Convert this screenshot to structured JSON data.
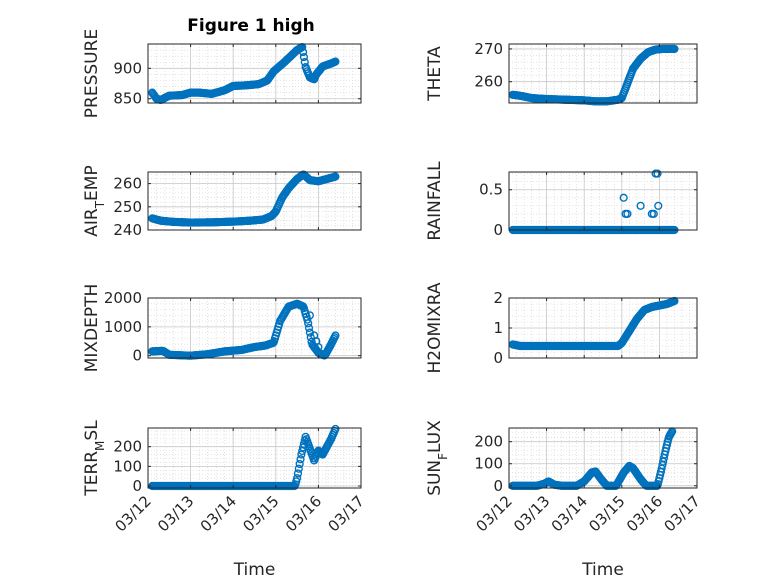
{
  "figure": {
    "title": "Figure 1 high"
  },
  "colors": {
    "marker": "#0072BD",
    "axes": "#262626",
    "grid": "#d0d0d0"
  },
  "chart_data": [
    {
      "id": "pressure",
      "type": "scatter",
      "title": "Figure 1 high",
      "ylabel": "PRESSURE",
      "ylabel_parts": [
        {
          "t": "PRESSURE",
          "sub": false
        }
      ],
      "xlim": [
        0,
        5
      ],
      "ylim": [
        843,
        940
      ],
      "yticks": [
        850,
        900
      ],
      "ytick_labels": [
        "850",
        "900"
      ],
      "xticks": [
        0,
        1,
        2,
        3,
        4,
        5
      ],
      "xtick_labels": [
        "03/12",
        "03/13",
        "03/14",
        "03/15",
        "03/16",
        "03/17"
      ],
      "show_xtick_labels": false,
      "grid": true,
      "minor_grid": true,
      "keypoints": [
        [
          0.1,
          860
        ],
        [
          0.2,
          850
        ],
        [
          0.3,
          848
        ],
        [
          0.5,
          855
        ],
        [
          0.8,
          856
        ],
        [
          1.0,
          860
        ],
        [
          1.2,
          860
        ],
        [
          1.5,
          858
        ],
        [
          1.8,
          864
        ],
        [
          2.0,
          871
        ],
        [
          2.3,
          872
        ],
        [
          2.6,
          874
        ],
        [
          2.8,
          880
        ],
        [
          2.95,
          895
        ],
        [
          3.2,
          910
        ],
        [
          3.5,
          930
        ],
        [
          3.62,
          935
        ],
        [
          3.7,
          902
        ],
        [
          3.8,
          885
        ],
        [
          3.9,
          882
        ],
        [
          3.95,
          890
        ],
        [
          4.1,
          903
        ],
        [
          4.3,
          908
        ],
        [
          4.4,
          911
        ]
      ]
    },
    {
      "id": "theta",
      "type": "scatter",
      "ylabel": "THETA",
      "ylabel_parts": [
        {
          "t": "THETA",
          "sub": false
        }
      ],
      "xlim": [
        0,
        5
      ],
      "ylim": [
        253.5,
        271.5
      ],
      "yticks": [
        260,
        270
      ],
      "ytick_labels": [
        "260",
        "270"
      ],
      "xticks": [
        0,
        1,
        2,
        3,
        4,
        5
      ],
      "xtick_labels": [
        "03/12",
        "03/13",
        "03/14",
        "03/15",
        "03/16",
        "03/17"
      ],
      "show_xtick_labels": false,
      "grid": true,
      "minor_grid": true,
      "keypoints": [
        [
          0.1,
          256
        ],
        [
          0.3,
          255.7
        ],
        [
          0.6,
          255
        ],
        [
          1.0,
          254.7
        ],
        [
          1.5,
          254.5
        ],
        [
          2.0,
          254.3
        ],
        [
          2.3,
          254.0
        ],
        [
          2.6,
          254.0
        ],
        [
          2.9,
          254.5
        ],
        [
          3.0,
          255
        ],
        [
          3.1,
          258
        ],
        [
          3.3,
          264
        ],
        [
          3.5,
          267
        ],
        [
          3.7,
          269
        ],
        [
          3.9,
          269.8
        ],
        [
          4.1,
          270
        ],
        [
          4.4,
          270
        ]
      ]
    },
    {
      "id": "air_temp",
      "type": "scatter",
      "ylabel": "AIR_TEMP",
      "ylabel_parts": [
        {
          "t": "AIR",
          "sub": false
        },
        {
          "t": "T",
          "sub": true
        },
        {
          "t": "EMP",
          "sub": false
        }
      ],
      "xlim": [
        0,
        5
      ],
      "ylim": [
        240,
        265
      ],
      "yticks": [
        240,
        250,
        260
      ],
      "ytick_labels": [
        "240",
        "250",
        "260"
      ],
      "xticks": [
        0,
        1,
        2,
        3,
        4,
        5
      ],
      "xtick_labels": [
        "03/12",
        "03/13",
        "03/14",
        "03/15",
        "03/16",
        "03/17"
      ],
      "show_xtick_labels": false,
      "grid": true,
      "minor_grid": true,
      "keypoints": [
        [
          0.1,
          245
        ],
        [
          0.3,
          244
        ],
        [
          0.6,
          243.5
        ],
        [
          1.0,
          243.2
        ],
        [
          1.5,
          243.3
        ],
        [
          2.0,
          243.6
        ],
        [
          2.4,
          244
        ],
        [
          2.7,
          244.5
        ],
        [
          2.9,
          246
        ],
        [
          3.0,
          248
        ],
        [
          3.15,
          254
        ],
        [
          3.3,
          258
        ],
        [
          3.5,
          262
        ],
        [
          3.65,
          264
        ],
        [
          3.8,
          261.5
        ],
        [
          4.0,
          261
        ],
        [
          4.2,
          262
        ],
        [
          4.4,
          263
        ]
      ]
    },
    {
      "id": "rainfall",
      "type": "scatter",
      "ylabel": "RAINFALL",
      "ylabel_parts": [
        {
          "t": "RAINFALL",
          "sub": false
        }
      ],
      "xlim": [
        0,
        5
      ],
      "ylim": [
        0,
        0.72
      ],
      "yticks": [
        0,
        0.5
      ],
      "ytick_labels": [
        "0",
        "0.5"
      ],
      "xticks": [
        0,
        1,
        2,
        3,
        4,
        5
      ],
      "xtick_labels": [
        "03/12",
        "03/13",
        "03/14",
        "03/15",
        "03/16",
        "03/17"
      ],
      "show_xtick_labels": false,
      "grid": true,
      "minor_grid": true,
      "keypoints": [
        [
          0.1,
          0
        ],
        [
          4.4,
          0
        ]
      ],
      "extra_points": [
        [
          3.05,
          0.4
        ],
        [
          3.1,
          0.2
        ],
        [
          3.15,
          0.2
        ],
        [
          3.5,
          0.3
        ],
        [
          3.8,
          0.2
        ],
        [
          3.85,
          0.2
        ],
        [
          3.9,
          0.7
        ],
        [
          3.95,
          0.7
        ],
        [
          3.97,
          0.3
        ]
      ]
    },
    {
      "id": "mixdepth",
      "type": "scatter",
      "ylabel": "MIXDEPTH",
      "ylabel_parts": [
        {
          "t": "MIXDEPTH",
          "sub": false
        }
      ],
      "xlim": [
        0,
        5
      ],
      "ylim": [
        -80,
        2000
      ],
      "yticks": [
        0,
        1000,
        2000
      ],
      "ytick_labels": [
        "0",
        "1000",
        "2000"
      ],
      "xticks": [
        0,
        1,
        2,
        3,
        4,
        5
      ],
      "xtick_labels": [
        "03/12",
        "03/13",
        "03/14",
        "03/15",
        "03/16",
        "03/17"
      ],
      "show_xtick_labels": false,
      "grid": true,
      "minor_grid": true,
      "keypoints": [
        [
          0.1,
          150
        ],
        [
          0.35,
          170
        ],
        [
          0.5,
          30
        ],
        [
          1.0,
          0
        ],
        [
          1.4,
          50
        ],
        [
          1.8,
          150
        ],
        [
          2.2,
          200
        ],
        [
          2.5,
          300
        ],
        [
          2.75,
          350
        ],
        [
          2.95,
          450
        ],
        [
          3.1,
          1200
        ],
        [
          3.3,
          1700
        ],
        [
          3.5,
          1800
        ],
        [
          3.65,
          1700
        ],
        [
          3.75,
          1200
        ],
        [
          3.85,
          400
        ],
        [
          4.0,
          100
        ],
        [
          4.15,
          0
        ],
        [
          4.3,
          400
        ],
        [
          4.4,
          700
        ]
      ],
      "extra_points": [
        [
          3.8,
          1400
        ],
        [
          3.9,
          700
        ],
        [
          3.95,
          500
        ],
        [
          4.0,
          300
        ]
      ]
    },
    {
      "id": "h2omixra",
      "type": "scatter",
      "ylabel": "H2OMIXRA",
      "ylabel_parts": [
        {
          "t": "H2OMIXRA",
          "sub": false
        }
      ],
      "xlim": [
        0,
        5
      ],
      "ylim": [
        0,
        2
      ],
      "yticks": [
        0,
        1,
        2
      ],
      "ytick_labels": [
        "0",
        "1",
        "2"
      ],
      "xticks": [
        0,
        1,
        2,
        3,
        4,
        5
      ],
      "xtick_labels": [
        "03/12",
        "03/13",
        "03/14",
        "03/15",
        "03/16",
        "03/17"
      ],
      "show_xtick_labels": false,
      "grid": true,
      "minor_grid": true,
      "keypoints": [
        [
          0.1,
          0.45
        ],
        [
          0.3,
          0.4
        ],
        [
          1.0,
          0.4
        ],
        [
          2.0,
          0.4
        ],
        [
          2.9,
          0.4
        ],
        [
          3.0,
          0.5
        ],
        [
          3.2,
          0.9
        ],
        [
          3.4,
          1.3
        ],
        [
          3.6,
          1.6
        ],
        [
          3.8,
          1.7
        ],
        [
          4.0,
          1.75
        ],
        [
          4.2,
          1.8
        ],
        [
          4.4,
          1.9
        ]
      ]
    },
    {
      "id": "terr_msl",
      "type": "scatter",
      "ylabel": "TERR_MSL",
      "ylabel_parts": [
        {
          "t": "TERR",
          "sub": false
        },
        {
          "t": "M",
          "sub": true
        },
        {
          "t": "SL",
          "sub": false
        }
      ],
      "xlim": [
        0,
        5
      ],
      "ylim": [
        -10,
        295
      ],
      "yticks": [
        0,
        100,
        200
      ],
      "ytick_labels": [
        "0",
        "100",
        "200"
      ],
      "xticks": [
        0,
        1,
        2,
        3,
        4,
        5
      ],
      "xtick_labels": [
        "03/12",
        "03/13",
        "03/14",
        "03/15",
        "03/16",
        "03/17"
      ],
      "show_xtick_labels": true,
      "xlabel": "Time",
      "grid": true,
      "minor_grid": true,
      "keypoints": [
        [
          0.1,
          0
        ],
        [
          3.45,
          0
        ],
        [
          3.5,
          40
        ],
        [
          3.6,
          160
        ],
        [
          3.7,
          250
        ],
        [
          3.8,
          190
        ],
        [
          3.9,
          130
        ],
        [
          4.0,
          180
        ],
        [
          4.1,
          160
        ],
        [
          4.2,
          200
        ],
        [
          4.3,
          240
        ],
        [
          4.4,
          290
        ]
      ]
    },
    {
      "id": "sun_flux",
      "type": "scatter",
      "ylabel": "SUN_FLUX",
      "ylabel_parts": [
        {
          "t": "SUN",
          "sub": false
        },
        {
          "t": "F",
          "sub": true
        },
        {
          "t": "LUX",
          "sub": false
        }
      ],
      "xlim": [
        0,
        5
      ],
      "ylim": [
        -10,
        262
      ],
      "yticks": [
        0,
        100,
        200
      ],
      "ytick_labels": [
        "0",
        "100",
        "200"
      ],
      "xticks": [
        0,
        1,
        2,
        3,
        4,
        5
      ],
      "xtick_labels": [
        "03/12",
        "03/13",
        "03/14",
        "03/15",
        "03/16",
        "03/17"
      ],
      "show_xtick_labels": true,
      "xlabel": "Time",
      "grid": true,
      "minor_grid": true,
      "keypoints": [
        [
          0.1,
          0
        ],
        [
          0.75,
          0
        ],
        [
          0.95,
          10
        ],
        [
          1.05,
          20
        ],
        [
          1.2,
          5
        ],
        [
          1.4,
          0
        ],
        [
          1.8,
          0
        ],
        [
          2.0,
          20
        ],
        [
          2.2,
          60
        ],
        [
          2.3,
          65
        ],
        [
          2.45,
          30
        ],
        [
          2.6,
          0
        ],
        [
          2.85,
          0
        ],
        [
          3.05,
          60
        ],
        [
          3.2,
          90
        ],
        [
          3.3,
          80
        ],
        [
          3.5,
          30
        ],
        [
          3.65,
          0
        ],
        [
          3.95,
          0
        ],
        [
          4.05,
          70
        ],
        [
          4.15,
          150
        ],
        [
          4.25,
          220
        ],
        [
          4.35,
          250
        ]
      ]
    }
  ]
}
